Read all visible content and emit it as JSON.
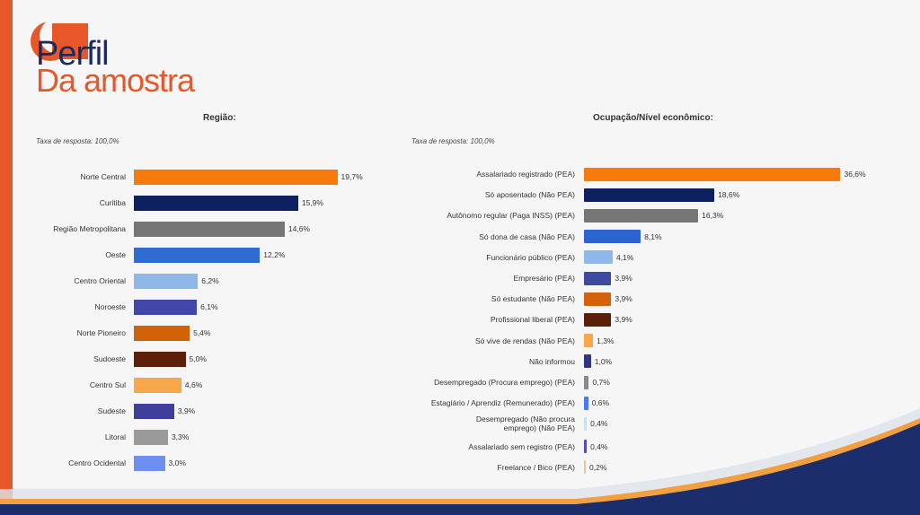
{
  "header": {
    "title_line1": "Perfil",
    "title_line2": "Da amostra"
  },
  "chart_data": [
    {
      "type": "bar",
      "orientation": "horizontal",
      "title": "Região:",
      "subtitle": "Taxa de resposta: 100,0%",
      "categories": [
        "Norte Central",
        "Curitiba",
        "Região Metropolitana",
        "Oeste",
        "Centro Oriental",
        "Noroeste",
        "Norte Pioneiro",
        "Sudoeste",
        "Centro Sul",
        "Sudeste",
        "Litoral",
        "Centro Ocidental"
      ],
      "values": [
        19.7,
        15.9,
        14.6,
        12.2,
        6.2,
        6.1,
        5.4,
        5.0,
        4.6,
        3.9,
        3.3,
        3.0
      ],
      "labels": [
        "19,7%",
        "15,9%",
        "14,6%",
        "12,2%",
        "6,2%",
        "6,1%",
        "5,4%",
        "5,0%",
        "4,6%",
        "3,9%",
        "3,3%",
        "3,0%"
      ],
      "colors": [
        "#f47b0c",
        "#0d2162",
        "#767676",
        "#2f6bd0",
        "#8fb8e8",
        "#3f48a8",
        "#d2620a",
        "#5c2008",
        "#f8a84a",
        "#3d3f9a",
        "#9a9a9a",
        "#6c8ff0"
      ]
    },
    {
      "type": "bar",
      "orientation": "horizontal",
      "title": "Ocupação/Nível econômico:",
      "subtitle": "Taxa de resposta: 100,0%",
      "categories": [
        "Assalariado registrado (PEA)",
        "Só aposentado (Não PEA)",
        "Autônomo regular (Paga INSS) (PEA)",
        "Só dona de casa (Não PEA)",
        "Funcionário público (PEA)",
        "Empresário (PEA)",
        "Só estudante (Não PEA)",
        "Profissional liberal (PEA)",
        "Só vive de rendas (Não PEA)",
        "Não informou",
        "Desempregado (Procura emprego) (PEA)",
        "Estagiário / Aprendiz (Remunerado) (PEA)",
        "Desempregado (Não procura emprego) (Não PEA)",
        "Assalariado sem registro (PEA)",
        "Freelance / Bico (PEA)"
      ],
      "values": [
        36.6,
        18.6,
        16.3,
        8.1,
        4.1,
        3.9,
        3.9,
        3.9,
        1.3,
        1.0,
        0.7,
        0.6,
        0.4,
        0.4,
        0.2
      ],
      "labels": [
        "36,6%",
        "18,6%",
        "16,3%",
        "8,1%",
        "4,1%",
        "3,9%",
        "3,9%",
        "3,9%",
        "1,3%",
        "1,0%",
        "0,7%",
        "0,6%",
        "0,4%",
        "0,4%",
        "0,2%"
      ],
      "colors": [
        "#f47b0c",
        "#0d2162",
        "#767676",
        "#2d63d3",
        "#8fb8e8",
        "#3d4aa0",
        "#d4620c",
        "#5a200a",
        "#f8a84a",
        "#30358a",
        "#8a8a8a",
        "#4a7af0",
        "#bfe4f0",
        "#5a4ab8",
        "#f0c0a0"
      ]
    }
  ]
}
